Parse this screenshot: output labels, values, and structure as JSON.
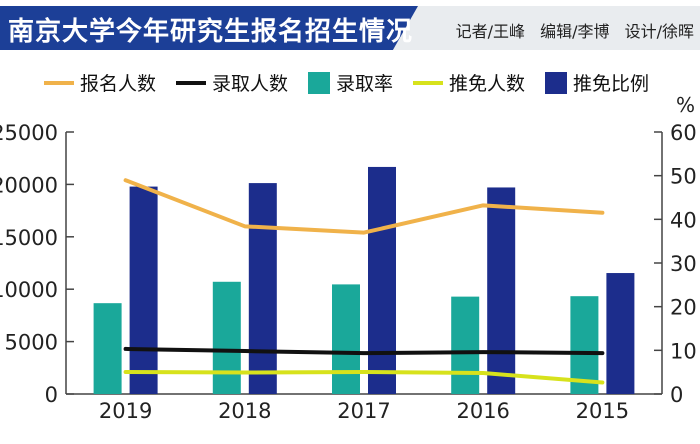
{
  "header": {
    "title": "南京大学今年研究生报名招生情况",
    "credits": [
      "记者/王峰",
      "编辑/李博",
      "设计/徐晖"
    ]
  },
  "chart_data": {
    "type": "bar",
    "categories": [
      "2019",
      "2018",
      "2017",
      "2016",
      "2015"
    ],
    "series": [
      {
        "name": "报名人数",
        "kind": "line",
        "axis": "left",
        "color": "#f0b24a",
        "values": [
          20400,
          16000,
          15400,
          18000,
          17300
        ]
      },
      {
        "name": "录取人数",
        "kind": "line",
        "axis": "left",
        "color": "#111111",
        "values": [
          4300,
          4100,
          3900,
          4000,
          3900
        ]
      },
      {
        "name": "录取率",
        "kind": "bar",
        "axis": "right",
        "color": "#1aa89a",
        "values": [
          20.8,
          25.7,
          25.1,
          22.3,
          22.4
        ]
      },
      {
        "name": "推免人数",
        "kind": "line",
        "axis": "left",
        "color": "#d7e21c",
        "values": [
          2100,
          2050,
          2100,
          2000,
          1100
        ]
      },
      {
        "name": "推免比例",
        "kind": "bar",
        "axis": "right",
        "color": "#1c2d8c",
        "values": [
          47.5,
          48.3,
          52.0,
          47.3,
          27.7
        ]
      }
    ],
    "yleft": {
      "ylim": [
        0,
        25000
      ],
      "ticks": [
        "0",
        "5000",
        "10000",
        "15000",
        "20000",
        "25000"
      ]
    },
    "yright": {
      "ylim": [
        0,
        60
      ],
      "ticks": [
        "0",
        "10",
        "20",
        "30",
        "40",
        "50",
        "60"
      ],
      "label": "%"
    },
    "legend": "top",
    "grid": false
  }
}
